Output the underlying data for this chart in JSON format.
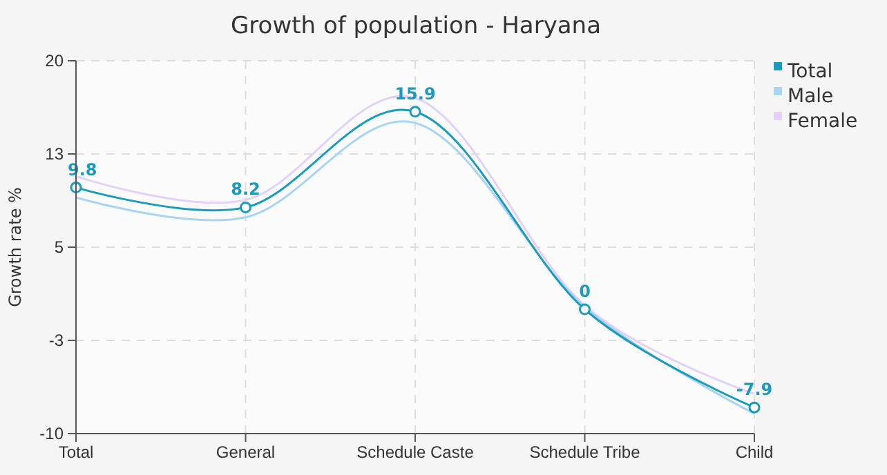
{
  "chart_data": {
    "type": "line",
    "title": "Growth of population - Haryana",
    "ylabel": "Growth rate %",
    "categories": [
      "Total",
      "General",
      "Schedule Caste",
      "Schedule Tribe",
      "Child"
    ],
    "ylim": [
      -10,
      20
    ],
    "yticks": [
      -10,
      {
        "value": -2.5,
        "label": "-3"
      },
      5,
      {
        "value": 12.5,
        "label": "13"
      },
      20
    ],
    "grid": true,
    "line_style": "solid",
    "legend": "top right",
    "series": [
      {
        "name": "Total",
        "color": "#1a9bbd",
        "marker": "circle",
        "values": [
          9.8,
          8.2,
          15.9,
          0,
          -7.9
        ],
        "value_labels": [
          "9.8",
          "8.2",
          "15.9",
          "0",
          "-7.9"
        ]
      },
      {
        "name": "Male",
        "type": "line",
        "color": "#a8d4f5",
        "marker": "none",
        "values": [
          9.0,
          7.4,
          15.0,
          0.2,
          -8.4
        ]
      },
      {
        "name": "Female",
        "type": "line",
        "color": "#e2d2f7",
        "marker": "none",
        "values": [
          10.7,
          8.8,
          17.0,
          0.3,
          -6.8
        ]
      }
    ]
  }
}
